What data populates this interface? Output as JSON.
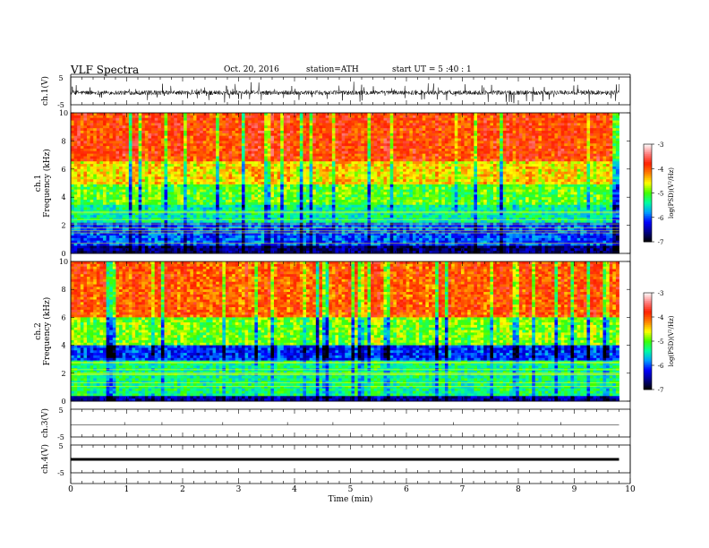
{
  "header": {
    "title": "VLF  Spectra",
    "date": "Oct. 20, 2016",
    "station": "station=ATH",
    "start": "start  UT =   5  :40 : 1"
  },
  "chart_data": [
    {
      "type": "line",
      "panel": "ch1-waveform",
      "ylabel": "ch.1(V)",
      "ylim": [
        -5,
        5
      ],
      "yticks": [
        "5",
        "-5"
      ],
      "x_range_min": [
        0,
        9.8
      ],
      "description_of_signal": "dense noisy waveform centred near 0 V with frequent spikes",
      "color": "#000000"
    },
    {
      "type": "heatmap",
      "panel": "ch1-spectrogram",
      "ylabel": "ch.1\nFrequency  (kHz)",
      "ylim": [
        0,
        10
      ],
      "yticks": [
        "0",
        "2",
        "4",
        "6",
        "8",
        "10"
      ],
      "colorbar": {
        "label": "log(PSD)(V²/Hz)",
        "range": [
          -7,
          -3
        ],
        "ticks": [
          "-3",
          "-4",
          "-5",
          "-6",
          "-7"
        ]
      },
      "bands_khz_to_logpsd": [
        [
          0,
          0.5,
          -6.6
        ],
        [
          0.5,
          2.2,
          -6.0
        ],
        [
          2.2,
          3.5,
          -5.4
        ],
        [
          3.5,
          5.0,
          -5.0
        ],
        [
          5.0,
          6.5,
          -4.5
        ],
        [
          6.5,
          10,
          -3.9
        ]
      ]
    },
    {
      "type": "heatmap",
      "panel": "ch2-spectrogram",
      "ylabel": "ch.2\nFrequency  (kHz)",
      "ylim": [
        0,
        10
      ],
      "yticks": [
        "0",
        "2",
        "4",
        "6",
        "8",
        "10"
      ],
      "colorbar": {
        "label": "log(PSD)(V²/Hz)",
        "range": [
          -7,
          -3
        ],
        "ticks": [
          "-3",
          "-4",
          "-5",
          "-6",
          "-7"
        ]
      },
      "bands_khz_to_logpsd": [
        [
          0,
          0.4,
          -6.5
        ],
        [
          0.4,
          3.0,
          -5.3
        ],
        [
          3.0,
          4.0,
          -6.1
        ],
        [
          4.0,
          6.0,
          -4.9
        ],
        [
          6.0,
          10,
          -4.0
        ]
      ]
    },
    {
      "type": "line",
      "panel": "ch3-waveform",
      "ylabel": "ch.3(V)",
      "ylim": [
        -5,
        5
      ],
      "yticks": [
        "5",
        "-5"
      ],
      "level_v": 0,
      "color": "#000000"
    },
    {
      "type": "line",
      "panel": "ch4-waveform",
      "ylabel": "ch.4(V)",
      "ylim": [
        -5,
        5
      ],
      "yticks": [
        "5",
        "-5"
      ],
      "level_v": 0,
      "color": "#000000"
    }
  ],
  "xaxis": {
    "label": "Time  (min)",
    "range": [
      0,
      10
    ],
    "ticks": [
      "0",
      "1",
      "2",
      "3",
      "4",
      "5",
      "6",
      "7",
      "8",
      "9",
      "10"
    ],
    "data_end_min": 9.8
  },
  "colormap": [
    "#000000",
    "#000088",
    "#0000ff",
    "#00a0ff",
    "#00ffa0",
    "#40ff00",
    "#ffff00",
    "#ff8000",
    "#ff2000",
    "#ff8080",
    "#ffffff"
  ]
}
